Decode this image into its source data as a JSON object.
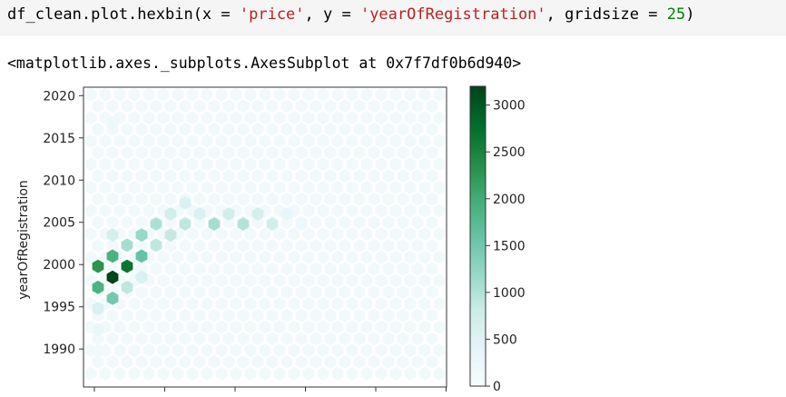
{
  "cell": {
    "code_parts": [
      {
        "text": "df_clean.plot.hexbin(x = ",
        "kind": "op"
      },
      {
        "text": "'price'",
        "kind": "str"
      },
      {
        "text": ", y = ",
        "kind": "op"
      },
      {
        "text": "'yearOfRegistration'",
        "kind": "str"
      },
      {
        "text": ", gridsize = ",
        "kind": "op"
      },
      {
        "text": "25",
        "kind": "num"
      },
      {
        "text": ")",
        "kind": "op"
      }
    ],
    "output_text": "<matplotlib.axes._subplots.AxesSubplot at 0x7f7df0b6d940>"
  },
  "chart_data": {
    "type": "heatmap",
    "subtype": "hexbin",
    "title": "",
    "xlabel": "",
    "ylabel": "yearOfRegistration",
    "yticks": [
      1990,
      1995,
      2000,
      2005,
      2010,
      2015,
      2020
    ],
    "ylim": [
      1985.5,
      2021
    ],
    "xticks_count": 6,
    "colorbar": {
      "ticks": [
        0,
        500,
        1000,
        1500,
        2000,
        2500,
        3000
      ],
      "range": [
        0,
        3200
      ],
      "colormap": "BuGn",
      "low_color": "#f7fcfd",
      "high_color": "#00441b"
    },
    "bins": [
      {
        "col": 0,
        "year": 1999.8,
        "count": 2300
      },
      {
        "col": 0,
        "year": 1997.3,
        "count": 1900
      },
      {
        "col": 0,
        "year": 1994.8,
        "count": 600
      },
      {
        "col": 0,
        "year": 1992.3,
        "count": 300
      },
      {
        "col": 0,
        "year": 1989.8,
        "count": 150
      },
      {
        "col": 0,
        "year": 2016.0,
        "count": 180
      },
      {
        "col": 1,
        "year": 1998.5,
        "count": 3200
      },
      {
        "col": 1,
        "year": 2001.0,
        "count": 1900
      },
      {
        "col": 1,
        "year": 1996.0,
        "count": 1500
      },
      {
        "col": 1,
        "year": 2003.5,
        "count": 650
      },
      {
        "col": 1,
        "year": 2016.8,
        "count": 230
      },
      {
        "col": 2,
        "year": 1999.8,
        "count": 2700
      },
      {
        "col": 2,
        "year": 2002.3,
        "count": 1100
      },
      {
        "col": 2,
        "year": 1997.3,
        "count": 900
      },
      {
        "col": 3,
        "year": 2001.0,
        "count": 1600
      },
      {
        "col": 3,
        "year": 2003.5,
        "count": 1200
      },
      {
        "col": 3,
        "year": 1998.5,
        "count": 600
      },
      {
        "col": 4,
        "year": 2004.8,
        "count": 1050
      },
      {
        "col": 4,
        "year": 2002.3,
        "count": 900
      },
      {
        "col": 5,
        "year": 2006.0,
        "count": 700
      },
      {
        "col": 5,
        "year": 2003.5,
        "count": 850
      },
      {
        "col": 6,
        "year": 2004.8,
        "count": 900
      },
      {
        "col": 6,
        "year": 2007.3,
        "count": 550
      },
      {
        "col": 7,
        "year": 2006.0,
        "count": 600
      },
      {
        "col": 8,
        "year": 2004.8,
        "count": 1100
      },
      {
        "col": 9,
        "year": 2006.0,
        "count": 700
      },
      {
        "col": 10,
        "year": 2004.8,
        "count": 1000
      },
      {
        "col": 11,
        "year": 2006.0,
        "count": 650
      },
      {
        "col": 12,
        "year": 2004.8,
        "count": 700
      },
      {
        "col": 13,
        "year": 2006.0,
        "count": 350
      },
      {
        "col": 14,
        "year": 2004.8,
        "count": 250
      }
    ]
  }
}
